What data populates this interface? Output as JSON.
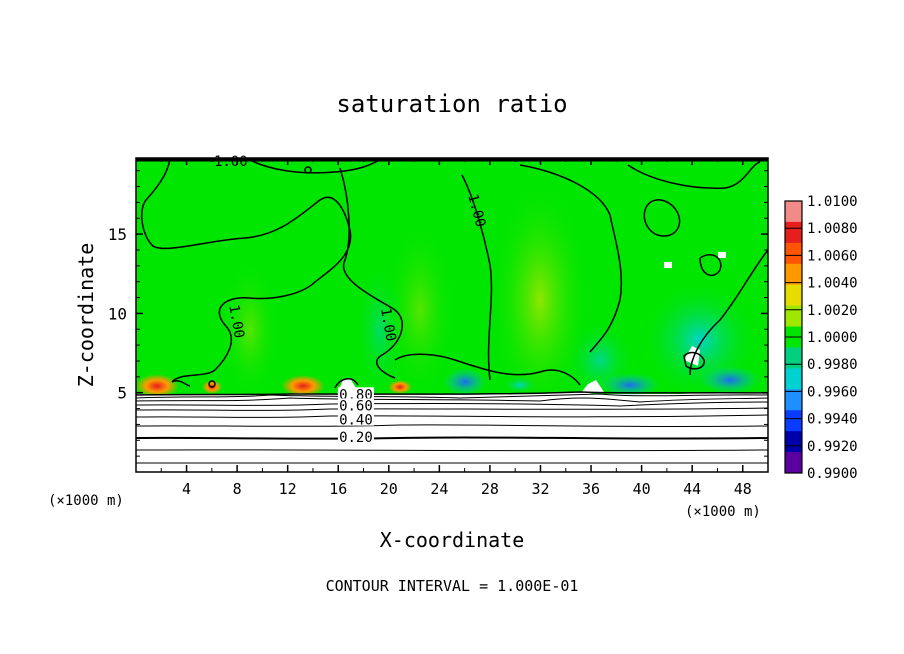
{
  "chart_data": {
    "type": "heatmap",
    "title": "saturation ratio",
    "xlabel": "X-coordinate",
    "ylabel": "Z-coordinate",
    "x_unit": "(×1000 m)",
    "xlim": [
      0,
      50
    ],
    "ylim": [
      0,
      19.8
    ],
    "x_ticks": [
      4,
      8,
      12,
      16,
      20,
      24,
      28,
      32,
      36,
      40,
      44,
      48
    ],
    "y_ticks": [
      5,
      10,
      15
    ],
    "footer": "CONTOUR INTERVAL = 1.000E-01",
    "colorbar": {
      "ticks": [
        "1.0100",
        "1.0080",
        "1.0060",
        "1.0040",
        "1.0020",
        "1.0000",
        "0.9980",
        "0.9960",
        "0.9940",
        "0.9920",
        "0.9900"
      ],
      "colors": [
        "#f28a8a",
        "#e61e1e",
        "#ff5500",
        "#ff9900",
        "#e6dc00",
        "#9fe600",
        "#00e600",
        "#00d080",
        "#00d2d2",
        "#1e90ff",
        "#0a3cff",
        "#0000aa",
        "#5a00a0"
      ]
    },
    "contour_labels": [
      {
        "text": "1.00",
        "x": 7.5,
        "y": 19.6
      },
      {
        "text": "1.00",
        "x": 27,
        "y": 16.5
      },
      {
        "text": "1.00",
        "x": 8,
        "y": 9.5
      },
      {
        "text": "1.00",
        "x": 20,
        "y": 9.3
      },
      {
        "text": "0.80",
        "x": 17.4,
        "y": 4.9
      },
      {
        "text": "0.60",
        "x": 17.4,
        "y": 4.2
      },
      {
        "text": "0.40",
        "x": 17.4,
        "y": 3.3
      },
      {
        "text": "0.20",
        "x": 17.4,
        "y": 2.2
      }
    ],
    "low_level_contours": [
      0.2,
      0.4,
      0.6,
      0.8
    ],
    "contour_interval": 0.1
  }
}
